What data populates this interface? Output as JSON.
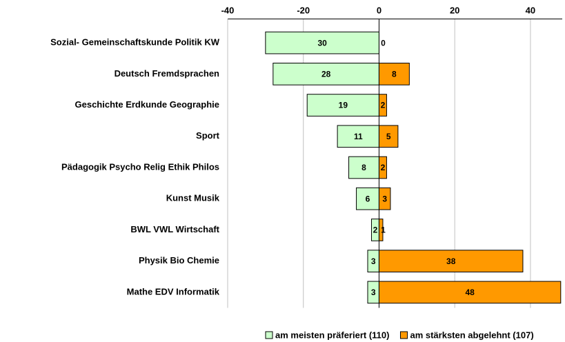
{
  "chart_data": {
    "type": "bar",
    "orientation": "horizontal",
    "categories": [
      "Sozial- Gemeinschaftskunde Politik KW",
      "Deutsch Fremdsprachen",
      "Geschichte Erdkunde Geographie",
      "Sport",
      "Pädagogik Psycho Relig Ethik Philos",
      "Kunst Musik",
      "BWL VWL Wirtschaft",
      "Physik Bio Chemie",
      "Mathe EDV Informatik"
    ],
    "series": [
      {
        "name": "am meisten präferiert (110)",
        "color": "#ccffcc",
        "values": [
          -30,
          -28,
          -19,
          -11,
          -8,
          -6,
          -2,
          -3,
          -3
        ],
        "value_labels": [
          "30",
          "28",
          "19",
          "11",
          "8",
          "6",
          "2",
          "3",
          "3"
        ]
      },
      {
        "name": "am stärksten abgelehnt (107)",
        "color": "#ff9900",
        "values": [
          0,
          8,
          2,
          5,
          2,
          3,
          1,
          38,
          48
        ]
      }
    ],
    "xlim": [
      -40,
      48.4
    ],
    "xticks": [
      -40,
      -20,
      0,
      20,
      40
    ],
    "grid": true,
    "legend": "bottom"
  }
}
